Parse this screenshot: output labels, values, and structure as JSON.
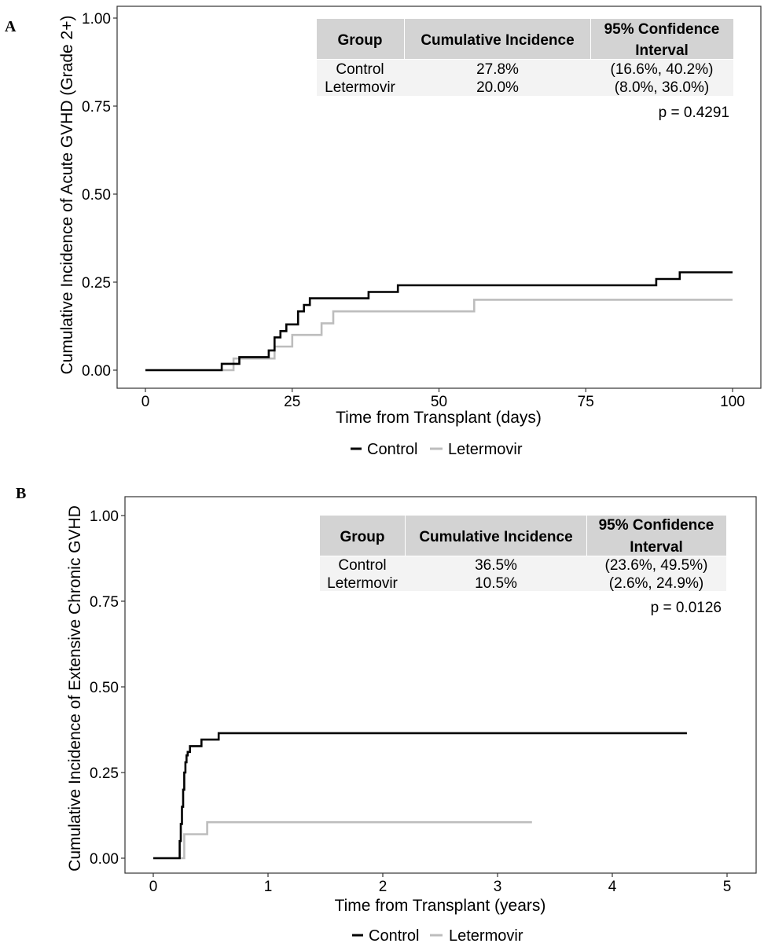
{
  "chart_data": [
    {
      "type": "line",
      "panel": "A",
      "xlabel": "Time from Transplant (days)",
      "ylabel": "Cumulative Incidence of Acute GVHD (Grade 2+)",
      "xlim": [
        0,
        100
      ],
      "ylim": [
        0,
        1
      ],
      "x_ticks": [
        "0",
        "25",
        "50",
        "75",
        "100"
      ],
      "y_ticks": [
        "0.00",
        "0.25",
        "0.50",
        "0.75",
        "1.00"
      ],
      "grid": false,
      "legend_position": "bottom",
      "table": {
        "headers": [
          "Group",
          "Cumulative Incidence",
          "95% Confidence",
          "Interval"
        ],
        "rows": [
          [
            "Control",
            "27.8%",
            "(16.6%, 40.2%)"
          ],
          [
            "Letermovir",
            "20.0%",
            "(8.0%, 36.0%)"
          ]
        ]
      },
      "p_value": "p = 0.4291",
      "series": [
        {
          "name": "Control",
          "color": "#000000",
          "x": [
            0,
            13,
            16,
            21,
            22,
            23,
            24,
            26,
            27,
            28,
            29,
            38,
            43,
            87,
            91,
            100
          ],
          "y": [
            0,
            0.018,
            0.037,
            0.056,
            0.093,
            0.111,
            0.13,
            0.167,
            0.185,
            0.204,
            0.204,
            0.222,
            0.241,
            0.259,
            0.278,
            0.278
          ]
        },
        {
          "name": "Letermovir",
          "color": "#bdbdbd",
          "x": [
            0,
            15,
            22,
            25,
            30,
            32,
            56,
            100
          ],
          "y": [
            0,
            0.033,
            0.067,
            0.1,
            0.133,
            0.167,
            0.2,
            0.2
          ]
        }
      ]
    },
    {
      "type": "line",
      "panel": "B",
      "xlabel": "Time from Transplant (years)",
      "ylabel": "Cumulative Incidence of Extensive Chronic GVHD",
      "xlim": [
        0,
        5
      ],
      "ylim": [
        0,
        1
      ],
      "x_ticks": [
        "0",
        "1",
        "2",
        "3",
        "4",
        "5"
      ],
      "y_ticks": [
        "0.00",
        "0.25",
        "0.50",
        "0.75",
        "1.00"
      ],
      "grid": false,
      "legend_position": "bottom",
      "table": {
        "headers": [
          "Group",
          "Cumulative Incidence",
          "95% Confidence",
          "Interval"
        ],
        "rows": [
          [
            "Control",
            "36.5%",
            "(23.6%, 49.5%)"
          ],
          [
            "Letermovir",
            "10.5%",
            "(2.6%, 24.9%)"
          ]
        ]
      },
      "p_value": "p = 0.0126",
      "series": [
        {
          "name": "Control",
          "color": "#000000",
          "x": [
            0,
            0.23,
            0.24,
            0.25,
            0.26,
            0.27,
            0.28,
            0.29,
            0.3,
            0.32,
            0.42,
            0.57,
            4.65
          ],
          "y": [
            0,
            0.05,
            0.1,
            0.15,
            0.2,
            0.25,
            0.28,
            0.3,
            0.31,
            0.327,
            0.346,
            0.365,
            0.365
          ]
        },
        {
          "name": "Letermovir",
          "color": "#bdbdbd",
          "x": [
            0,
            0.27,
            0.47,
            3.3
          ],
          "y": [
            0,
            0.07,
            0.105,
            0.105
          ]
        }
      ]
    }
  ]
}
